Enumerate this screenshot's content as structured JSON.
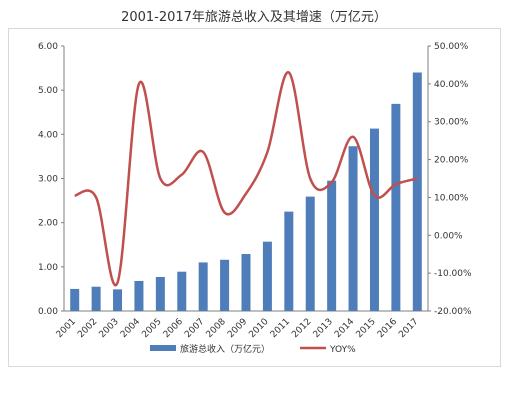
{
  "chart_data": {
    "type": "bar+line",
    "title": "2001-2017年旅游总收入及其增速（万亿元）",
    "categories": [
      "2001",
      "2002",
      "2003",
      "2004",
      "2005",
      "2006",
      "2007",
      "2008",
      "2009",
      "2010",
      "2011",
      "2012",
      "2013",
      "2014",
      "2015",
      "2016",
      "2017"
    ],
    "series": [
      {
        "name": "旅游总收入（万亿元）",
        "type": "bar",
        "axis": "left",
        "color": "#4f7db9",
        "values": [
          0.5,
          0.55,
          0.49,
          0.68,
          0.77,
          0.89,
          1.1,
          1.16,
          1.29,
          1.57,
          2.25,
          2.59,
          2.95,
          3.73,
          4.13,
          4.69,
          5.4
        ]
      },
      {
        "name": "YOY%",
        "type": "line",
        "axis": "right",
        "color": "#c0504d",
        "values": [
          10.5,
          10.0,
          -12.5,
          40.0,
          15.0,
          16.0,
          22.0,
          6.0,
          11.0,
          22.0,
          43.0,
          15.0,
          14.0,
          26.0,
          10.5,
          13.5,
          15.0
        ]
      }
    ],
    "y_left": {
      "ylim": [
        0,
        6
      ],
      "ticks": [
        "0.00",
        "1.00",
        "2.00",
        "3.00",
        "4.00",
        "5.00",
        "6.00"
      ]
    },
    "y_right": {
      "ylim": [
        -20,
        50
      ],
      "ticks": [
        "-20.00%",
        "-10.00%",
        "0.00%",
        "10.00%",
        "20.00%",
        "30.00%",
        "40.00%",
        "50.00%"
      ]
    },
    "grid": false,
    "legend": "bottom"
  }
}
